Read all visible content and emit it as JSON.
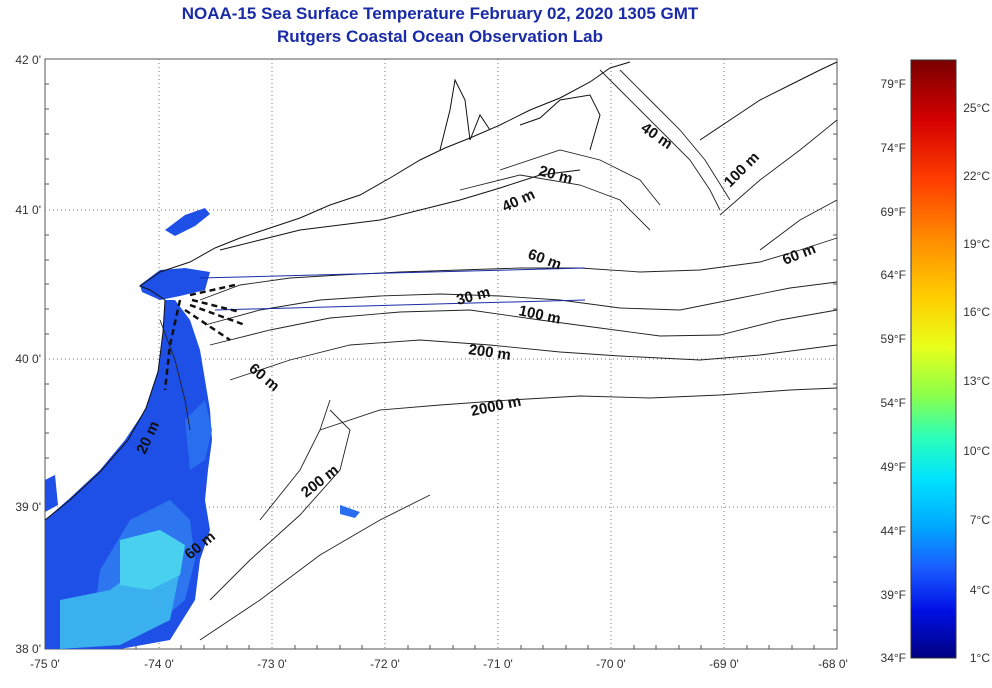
{
  "title_line1": "NOAA-15 Sea Surface Temperature February 02, 2020 1305 GMT",
  "title_line2": "Rutgers Coastal Ocean Observation Lab",
  "lon_ticks": [
    "-75 0'",
    "-74 0'",
    "-73 0'",
    "-72 0'",
    "-71 0'",
    "-70 0'",
    "-69 0'",
    "-68 0'"
  ],
  "lat_ticks": [
    "42 0'",
    "41 0'",
    "40 0'",
    "39 0'",
    "38 0'"
  ],
  "contour_labels": [
    "40 m",
    "100 m",
    "20 m",
    "40 m",
    "60 m",
    "60 m",
    "30 m",
    "100 m",
    "200 m",
    "60 m",
    "2000 m",
    "20 m",
    "200 m",
    "60 m"
  ],
  "colorbar": {
    "fahrenheit": [
      "79°F",
      "74°F",
      "69°F",
      "64°F",
      "59°F",
      "54°F",
      "49°F",
      "44°F",
      "39°F",
      "34°F"
    ],
    "celsius": [
      "25°C",
      "22°C",
      "19°C",
      "16°C",
      "13°C",
      "10°C",
      "7°C",
      "4°C",
      "1°C"
    ],
    "colors": [
      "#7a0000",
      "#cc0000",
      "#ff3300",
      "#ff8800",
      "#ffcc00",
      "#eeff00",
      "#99ff33",
      "#33ffaa",
      "#00e5ff",
      "#00aaff",
      "#1a5fff",
      "#0010ee",
      "#00007a"
    ]
  },
  "colors": {
    "title": "#1a2ba8",
    "water_cold": "#1e56e6",
    "water_warm": "#3fc6ea"
  }
}
